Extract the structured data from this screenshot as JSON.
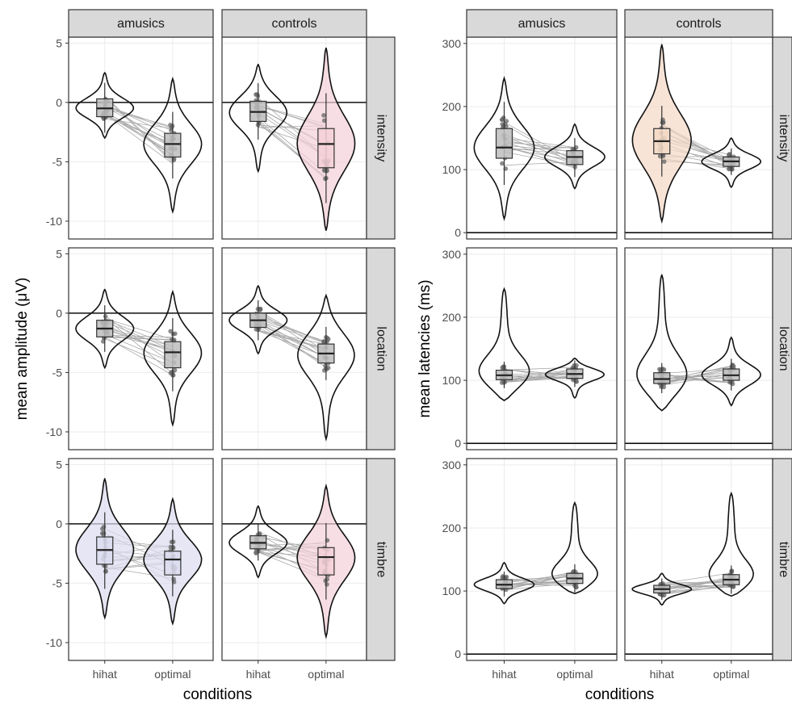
{
  "chart_data": [
    {
      "type": "violin",
      "panel": "amplitude",
      "xlabel": "conditions",
      "ylabel": "mean amplitude (μV)",
      "ylim": [
        -11.5,
        5.5
      ],
      "yticks": [
        5,
        0,
        -5,
        -10
      ],
      "categories": [
        "hihat",
        "optimal"
      ],
      "columns": [
        "amusics",
        "controls"
      ],
      "rows": [
        "intensity",
        "location",
        "timbre"
      ],
      "zero_line": 0,
      "grid": true,
      "cells": [
        {
          "column": "amusics",
          "row": "intensity",
          "groups": [
            {
              "condition": "hihat",
              "min": -3.0,
              "max": 2.5,
              "median": -0.5,
              "q1": -1.2,
              "q3": 0.3,
              "fill": ""
            },
            {
              "condition": "optimal",
              "min": -9.2,
              "max": 2.0,
              "median": -3.5,
              "q1": -4.6,
              "q3": -2.6,
              "fill": ""
            }
          ]
        },
        {
          "column": "controls",
          "row": "intensity",
          "groups": [
            {
              "condition": "hihat",
              "min": -5.8,
              "max": 3.2,
              "median": -0.8,
              "q1": -1.6,
              "q3": 0.1,
              "fill": ""
            },
            {
              "condition": "optimal",
              "min": -10.8,
              "max": 4.6,
              "median": -3.5,
              "q1": -5.5,
              "q3": -2.2,
              "fill": "#f4d0d8"
            }
          ]
        },
        {
          "column": "amusics",
          "row": "location",
          "groups": [
            {
              "condition": "hihat",
              "min": -4.6,
              "max": 2.0,
              "median": -1.3,
              "q1": -2.0,
              "q3": -0.6,
              "fill": ""
            },
            {
              "condition": "optimal",
              "min": -9.4,
              "max": 1.8,
              "median": -3.3,
              "q1": -4.6,
              "q3": -2.4,
              "fill": ""
            }
          ]
        },
        {
          "column": "controls",
          "row": "location",
          "groups": [
            {
              "condition": "hihat",
              "min": -3.4,
              "max": 2.3,
              "median": -0.6,
              "q1": -1.2,
              "q3": 0.0,
              "fill": ""
            },
            {
              "condition": "optimal",
              "min": -10.6,
              "max": 1.5,
              "median": -3.4,
              "q1": -4.2,
              "q3": -2.6,
              "fill": ""
            }
          ]
        },
        {
          "column": "amusics",
          "row": "timbre",
          "groups": [
            {
              "condition": "hihat",
              "min": -7.9,
              "max": 3.8,
              "median": -2.2,
              "q1": -3.4,
              "q3": -1.1,
              "fill": "#dcdcf0"
            },
            {
              "condition": "optimal",
              "min": -8.4,
              "max": 2.1,
              "median": -3.0,
              "q1": -4.3,
              "q3": -2.3,
              "fill": "#dcdcf0"
            }
          ]
        },
        {
          "column": "controls",
          "row": "timbre",
          "groups": [
            {
              "condition": "hihat",
              "min": -4.5,
              "max": 1.5,
              "median": -1.6,
              "q1": -2.1,
              "q3": -1.0,
              "fill": ""
            },
            {
              "condition": "optimal",
              "min": -9.5,
              "max": 3.2,
              "median": -2.8,
              "q1": -4.3,
              "q3": -2.0,
              "fill": "#f4d0d8"
            }
          ]
        }
      ]
    },
    {
      "type": "violin",
      "panel": "latency",
      "xlabel": "conditions",
      "ylabel": "mean latencies (ms)",
      "ylim": [
        -10,
        310
      ],
      "yticks": [
        300,
        200,
        100,
        0
      ],
      "categories": [
        "hihat",
        "optimal"
      ],
      "columns": [
        "amusics",
        "controls"
      ],
      "rows": [
        "intensity",
        "location",
        "timbre"
      ],
      "zero_line": 0,
      "grid": true,
      "cells": [
        {
          "column": "amusics",
          "row": "intensity",
          "groups": [
            {
              "condition": "hihat",
              "min": 22,
              "max": 245,
              "median": 135,
              "q1": 118,
              "q3": 165,
              "fill": ""
            },
            {
              "condition": "optimal",
              "min": 70,
              "max": 172,
              "median": 120,
              "q1": 108,
              "q3": 130,
              "fill": ""
            }
          ]
        },
        {
          "column": "controls",
          "row": "intensity",
          "groups": [
            {
              "condition": "hihat",
              "min": 18,
              "max": 298,
              "median": 145,
              "q1": 125,
              "q3": 165,
              "fill": "#f3d9c6"
            },
            {
              "condition": "optimal",
              "min": 72,
              "max": 150,
              "median": 113,
              "q1": 105,
              "q3": 120,
              "fill": ""
            }
          ]
        },
        {
          "column": "amusics",
          "row": "location",
          "groups": [
            {
              "condition": "hihat",
              "min": 68,
              "max": 245,
              "median": 108,
              "q1": 101,
              "q3": 116,
              "fill": ""
            },
            {
              "condition": "optimal",
              "min": 72,
              "max": 135,
              "median": 110,
              "q1": 103,
              "q3": 118,
              "fill": ""
            }
          ]
        },
        {
          "column": "controls",
          "row": "location",
          "groups": [
            {
              "condition": "hihat",
              "min": 52,
              "max": 267,
              "median": 102,
              "q1": 95,
              "q3": 112,
              "fill": ""
            },
            {
              "condition": "optimal",
              "min": 60,
              "max": 168,
              "median": 108,
              "q1": 100,
              "q3": 118,
              "fill": ""
            }
          ]
        },
        {
          "column": "amusics",
          "row": "timbre",
          "groups": [
            {
              "condition": "hihat",
              "min": 80,
              "max": 145,
              "median": 110,
              "q1": 104,
              "q3": 118,
              "fill": ""
            },
            {
              "condition": "optimal",
              "min": 96,
              "max": 240,
              "median": 120,
              "q1": 112,
              "q3": 128,
              "fill": ""
            }
          ]
        },
        {
          "column": "controls",
          "row": "timbre",
          "groups": [
            {
              "condition": "hihat",
              "min": 78,
              "max": 128,
              "median": 103,
              "q1": 97,
              "q3": 109,
              "fill": ""
            },
            {
              "condition": "optimal",
              "min": 92,
              "max": 255,
              "median": 118,
              "q1": 110,
              "q3": 126,
              "fill": ""
            }
          ]
        }
      ]
    }
  ]
}
